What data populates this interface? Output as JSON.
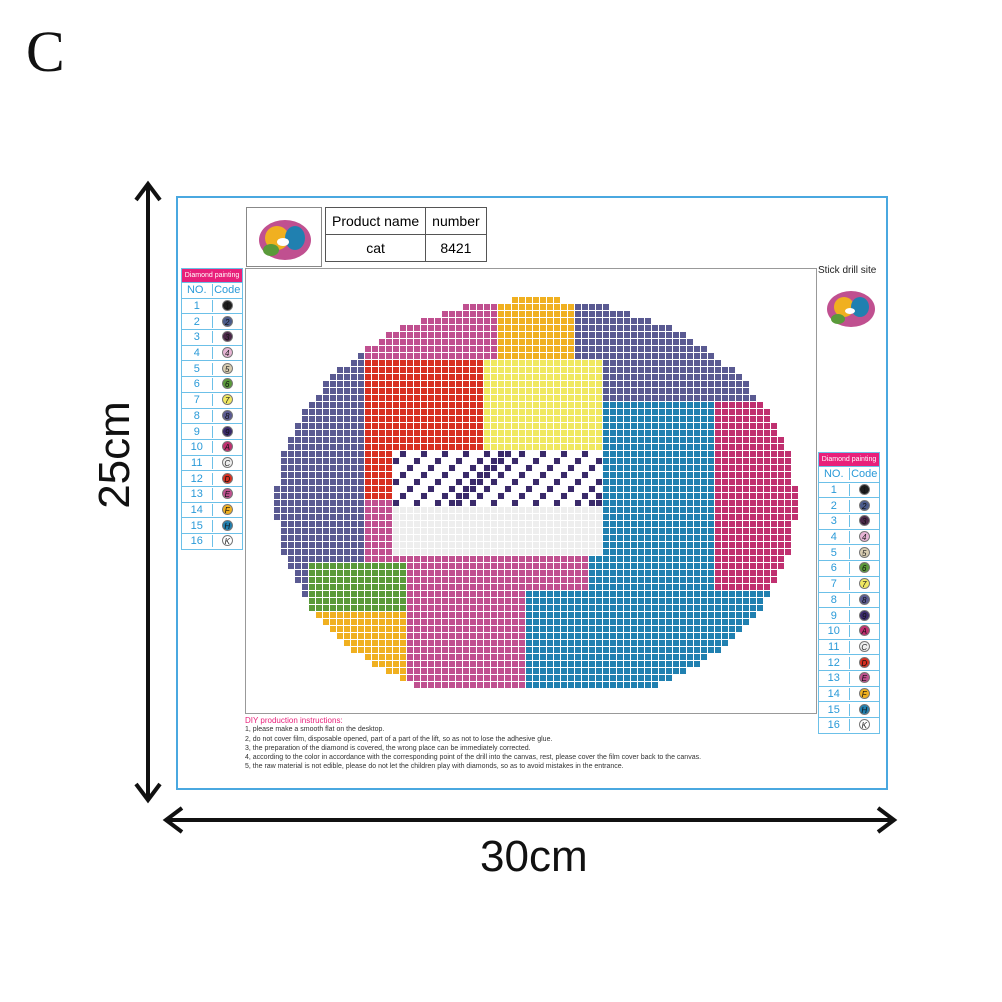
{
  "corner_label": "C",
  "dimensions": {
    "height": "25cm",
    "width": "30cm"
  },
  "product_table": {
    "headers": [
      "Product name",
      "number"
    ],
    "values": [
      "cat",
      "8421"
    ]
  },
  "stick_drill_site": "Stick drill site",
  "legend": {
    "title": "Diamond painting",
    "headers": [
      "NO.",
      "Code"
    ],
    "rows": [
      {
        "no": "1",
        "code": "1",
        "color": "#1e1e1e"
      },
      {
        "no": "2",
        "code": "2",
        "color": "#4a5a8a"
      },
      {
        "no": "3",
        "code": "3",
        "color": "#4a2848"
      },
      {
        "no": "4",
        "code": "4",
        "color": "#e6b4d4"
      },
      {
        "no": "5",
        "code": "5",
        "color": "#d8ccb0"
      },
      {
        "no": "6",
        "code": "6",
        "color": "#5a9a3a"
      },
      {
        "no": "7",
        "code": "7",
        "color": "#f0e860"
      },
      {
        "no": "8",
        "code": "8",
        "color": "#5a5a92"
      },
      {
        "no": "9",
        "code": "9",
        "color": "#3a2a6a"
      },
      {
        "no": "10",
        "code": "A",
        "color": "#c03070"
      },
      {
        "no": "11",
        "code": "C",
        "color": "#eeeeee"
      },
      {
        "no": "12",
        "code": "D",
        "color": "#d83020"
      },
      {
        "no": "13",
        "code": "E",
        "color": "#c05090"
      },
      {
        "no": "14",
        "code": "F",
        "color": "#f0b020"
      },
      {
        "no": "15",
        "code": "H",
        "color": "#2080b0"
      },
      {
        "no": "16",
        "code": "K",
        "color": "#ffffff"
      }
    ]
  },
  "instructions": {
    "title": "DIY production instructions:",
    "steps": [
      "1, please make a smooth flat on the desktop.",
      "2, do not cover film, disposable opened, part of a part of the lift, so as not to lose the adhesive glue.",
      "3, the preparation of the diamond is covered, the wrong place can be immediately corrected.",
      "4, according to the color in accordance with the corresponding point of the drill into the canvas, rest, please cover the film cover back to the canvas.",
      "5, the raw material is not edible, please do not let the children play with diamonds, so as to avoid mistakes in the entrance."
    ]
  }
}
